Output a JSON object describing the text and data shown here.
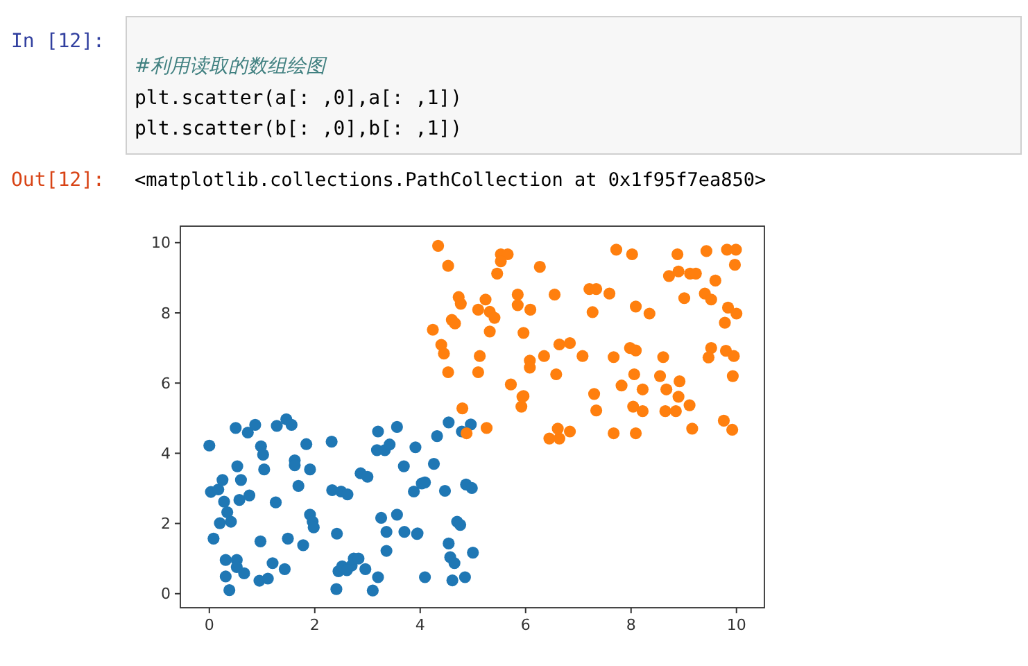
{
  "chart_data": {
    "type": "scatter",
    "marker": "circle",
    "grid": false,
    "xlim": [
      -0.55,
      10.53
    ],
    "ylim": [
      -0.4,
      10.47
    ],
    "xticks": [
      0,
      2,
      4,
      6,
      8,
      10
    ],
    "yticks": [
      0,
      2,
      4,
      6,
      8,
      10
    ],
    "annotations": [
      "In [12]:",
      "#利用读取的数组绘图",
      "plt.scatter(a[: ,0],a[: ,1])",
      "plt.scatter(b[: ,0],b[: ,1])",
      "Out[12]:",
      "<matplotlib.collections.PathCollection at 0x1f95f7ea850>"
    ],
    "series": [
      {
        "color": "#1f77b4",
        "x": [
          0,
          0.5,
          0.73,
          0.87,
          1.28,
          1.46,
          1.56,
          0.03,
          0.17,
          0.25,
          0.28,
          0.34,
          0.41,
          0.2,
          0.53,
          0.6,
          0.57,
          0.76,
          0.98,
          1.02,
          1.04,
          1.26,
          0.08,
          0.31,
          0.52,
          0.52,
          0.66,
          0.31,
          0.38,
          0.97,
          0.95,
          1.11,
          1.2,
          1.43,
          1.49,
          1.62,
          1.62,
          1.69,
          1.84,
          1.91,
          1.78,
          1.91,
          1.96,
          1.98,
          2.32,
          2.33,
          2.5,
          2.62,
          2.42,
          2.41,
          2.45,
          2.52,
          2.7,
          2.74,
          2.83,
          2.61,
          2.96,
          3.2,
          3.1,
          2.87,
          3.0,
          3.18,
          3.2,
          3.33,
          3.42,
          3.56,
          3.26,
          3.36,
          3.56,
          3.7,
          3.94,
          3.36,
          3.69,
          3.91,
          3.88,
          4.03,
          4.09,
          4.26,
          4.32,
          4.47,
          4.54,
          4.96,
          4.79,
          4.87,
          4.98,
          4.7,
          4.76,
          4.54,
          4.57,
          4.65,
          5.0,
          4.09,
          4.61,
          4.85,
          3.95
        ],
        "values": [
          4.22,
          4.72,
          4.59,
          4.81,
          4.78,
          4.97,
          4.81,
          2.9,
          2.97,
          3.24,
          2.62,
          2.32,
          2.05,
          2.01,
          3.63,
          3.24,
          2.67,
          2.8,
          4.2,
          3.96,
          3.54,
          2.6,
          1.57,
          0.96,
          0.96,
          0.76,
          0.58,
          0.49,
          0.1,
          1.49,
          0.37,
          0.43,
          0.87,
          0.7,
          1.57,
          3.8,
          3.66,
          3.07,
          4.26,
          3.54,
          1.38,
          2.25,
          2.05,
          1.89,
          4.33,
          2.95,
          2.91,
          2.83,
          1.71,
          0.13,
          0.64,
          0.78,
          0.8,
          1.0,
          1.0,
          0.67,
          0.7,
          0.47,
          0.09,
          3.43,
          3.33,
          4.09,
          4.62,
          4.09,
          4.25,
          4.75,
          2.16,
          1.76,
          2.25,
          1.76,
          1.7,
          1.22,
          3.63,
          4.17,
          2.91,
          3.14,
          3.17,
          3.7,
          4.49,
          2.93,
          4.88,
          4.82,
          4.62,
          3.11,
          3.01,
          2.05,
          1.96,
          1.43,
          1.04,
          0.87,
          1.17,
          0.47,
          0.38,
          0.47,
          1.72
        ]
      },
      {
        "color": "#ff7f0e",
        "x": [
          4.34,
          4.53,
          4.73,
          4.77,
          4.6,
          4.66,
          4.24,
          4.4,
          4.45,
          4.53,
          4.8,
          5.1,
          5.24,
          5.32,
          5.41,
          5.32,
          5.13,
          5.1,
          5.53,
          5.66,
          5.53,
          5.46,
          5.85,
          5.85,
          6.09,
          5.96,
          6.27,
          6.55,
          6.64,
          6.84,
          6.08,
          6.08,
          6.35,
          6.58,
          5.72,
          5.96,
          5.92,
          7.08,
          7.21,
          7.34,
          7.59,
          7.27,
          7.72,
          8.02,
          7.3,
          7.34,
          7.67,
          7.98,
          8.09,
          8.09,
          8.35,
          8.06,
          7.82,
          8.22,
          8.04,
          8.22,
          8.61,
          8.55,
          8.67,
          8.92,
          8.9,
          8.65,
          8.85,
          9.11,
          8.88,
          8.72,
          8.9,
          9.12,
          9.23,
          9.01,
          9.43,
          9.6,
          9.4,
          9.52,
          9.82,
          9.99,
          9.97,
          9.84,
          10.0,
          9.78,
          9.52,
          9.47,
          9.8,
          9.95,
          9.93,
          4.88,
          5.26,
          5.94,
          6.45,
          6.64,
          6.61,
          6.84,
          7.67,
          8.09,
          9.16,
          9.76,
          9.92
        ],
        "values": [
          9.91,
          9.34,
          8.45,
          8.26,
          7.8,
          7.7,
          7.52,
          7.09,
          6.84,
          6.31,
          5.28,
          8.09,
          8.38,
          8.03,
          7.86,
          7.47,
          6.77,
          6.31,
          9.67,
          9.67,
          9.47,
          9.12,
          8.52,
          8.22,
          8.09,
          7.43,
          9.31,
          8.52,
          7.1,
          7.14,
          6.64,
          6.44,
          6.77,
          6.25,
          5.96,
          5.63,
          5.33,
          6.77,
          8.68,
          8.68,
          8.55,
          8.02,
          9.8,
          9.67,
          5.69,
          5.22,
          6.74,
          7.0,
          6.93,
          8.18,
          7.98,
          6.25,
          5.93,
          5.82,
          5.33,
          5.2,
          6.74,
          6.2,
          5.82,
          6.05,
          5.61,
          5.2,
          5.2,
          5.37,
          9.67,
          9.05,
          9.18,
          9.12,
          9.12,
          8.42,
          9.76,
          8.92,
          8.55,
          8.38,
          9.8,
          9.8,
          9.37,
          8.15,
          7.98,
          7.72,
          7.0,
          6.73,
          6.92,
          6.77,
          6.2,
          4.57,
          4.72,
          5.61,
          4.42,
          4.42,
          4.7,
          4.62,
          4.57,
          4.57,
          4.7,
          4.93,
          4.67
        ]
      }
    ]
  }
}
